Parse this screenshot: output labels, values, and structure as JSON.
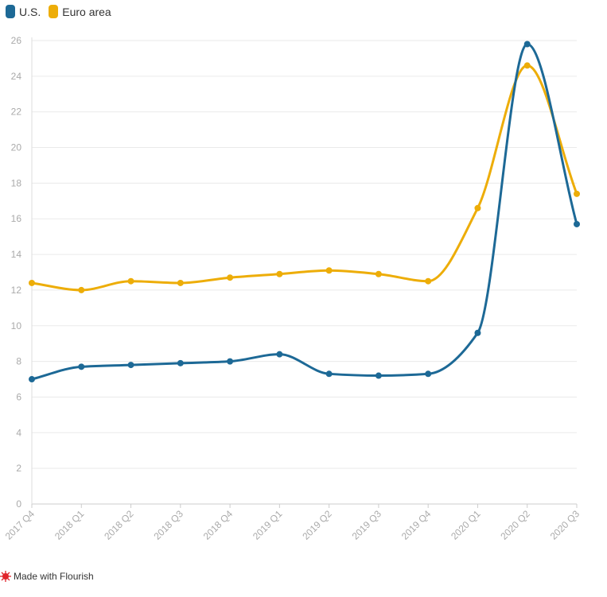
{
  "chart_data": {
    "type": "line",
    "categories": [
      "2017 Q4",
      "2018 Q1",
      "2018 Q2",
      "2018 Q3",
      "2018 Q4",
      "2019 Q1",
      "2019 Q2",
      "2019 Q3",
      "2019 Q4",
      "2020 Q1",
      "2020 Q2",
      "2020 Q3"
    ],
    "series": [
      {
        "name": "U.S.",
        "color": "#1d6996",
        "values": [
          7.0,
          7.7,
          7.8,
          7.9,
          8.0,
          8.4,
          7.3,
          7.2,
          7.3,
          9.6,
          25.8,
          15.7
        ]
      },
      {
        "name": "Euro area",
        "color": "#edad08",
        "values": [
          12.4,
          12.0,
          12.5,
          12.4,
          12.7,
          12.9,
          13.1,
          12.9,
          12.5,
          16.6,
          24.6,
          17.4
        ]
      }
    ],
    "yticks": [
      0,
      2,
      4,
      6,
      8,
      10,
      12,
      14,
      16,
      18,
      20,
      22,
      24,
      26
    ],
    "ylim": [
      0,
      26
    ],
    "title": "",
    "xlabel": "",
    "ylabel": "",
    "grid": true,
    "legend": "top-left"
  },
  "footer": {
    "label": "Made with Flourish",
    "icon": "flourish-logo-icon"
  }
}
